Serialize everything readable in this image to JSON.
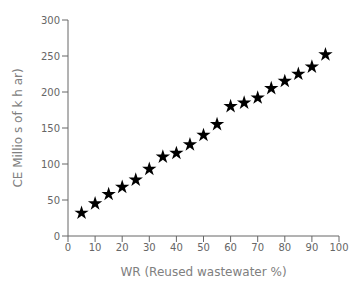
{
  "chart_data": {
    "type": "scatter",
    "xlabel": "WR (Reused wastewater %)",
    "ylabel": "CE Millio s of k  h  ar)",
    "x": [
      5,
      10,
      15,
      20,
      25,
      30,
      35,
      40,
      45,
      50,
      55,
      60,
      65,
      70,
      75,
      80,
      85,
      90,
      95
    ],
    "values": [
      32,
      45,
      58,
      68,
      78,
      93,
      110,
      115,
      127,
      140,
      155,
      180,
      185,
      192,
      205,
      215,
      225,
      235,
      252
    ],
    "xlim": [
      0,
      100
    ],
    "ylim": [
      0,
      300
    ],
    "xticks": [
      0,
      10,
      20,
      30,
      40,
      50,
      60,
      70,
      80,
      90,
      100
    ],
    "yticks": [
      0,
      50,
      100,
      150,
      200,
      250,
      300
    ],
    "color": "black",
    "marker": "star",
    "grid": false
  }
}
